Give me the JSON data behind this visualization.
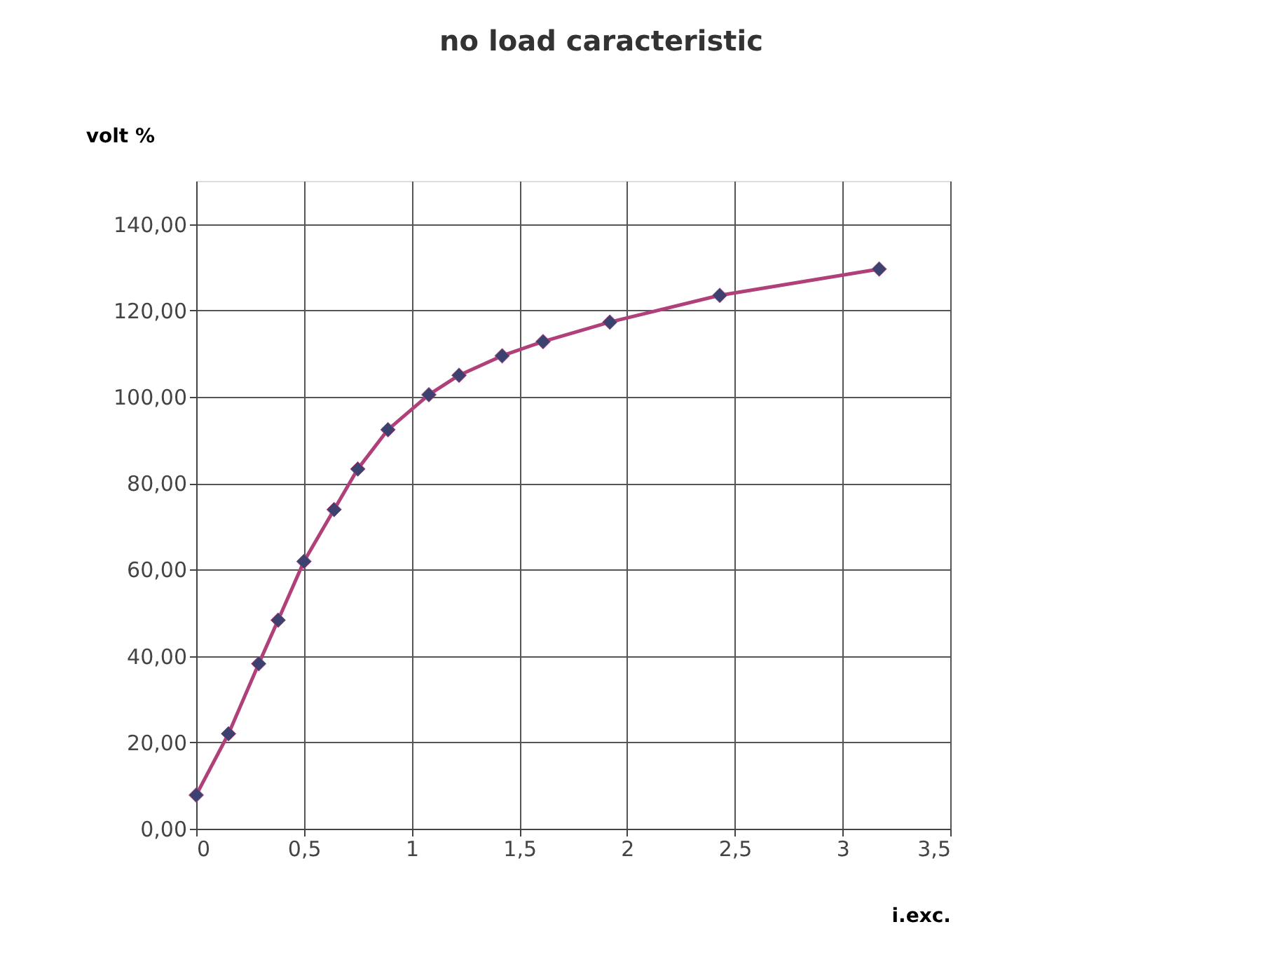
{
  "chart_data": {
    "type": "line",
    "title": "no load caracteristic",
    "xlabel": "i.exc.",
    "ylabel": "volt %",
    "x": [
      0,
      0.15,
      0.29,
      0.38,
      0.5,
      0.64,
      0.75,
      0.89,
      1.08,
      1.22,
      1.42,
      1.61,
      1.92,
      2.43,
      3.17
    ],
    "series": [
      {
        "color": "#b0407a",
        "values": [
          7.8,
          22.0,
          38.2,
          48.3,
          61.9,
          73.9,
          83.3,
          92.4,
          100.5,
          105.0,
          109.5,
          112.8,
          117.3,
          123.5,
          129.6
        ]
      }
    ],
    "xlim": [
      0,
      3.5
    ],
    "xticks": [
      0,
      {
        "value": 0.5,
        "label": "0,5"
      },
      1,
      {
        "value": 1.5,
        "label": "1,5"
      },
      2,
      {
        "value": 2.5,
        "label": "2,5"
      },
      3,
      {
        "value": 3.5,
        "label": "3,5"
      }
    ],
    "ylim": [
      0,
      150
    ],
    "yticks": [
      {
        "value": 0,
        "label": "0,00"
      },
      {
        "value": 20,
        "label": "20,00"
      },
      {
        "value": 40,
        "label": "40,00"
      },
      {
        "value": 60,
        "label": "60,00"
      },
      {
        "value": 80,
        "label": "80,00"
      },
      {
        "value": 100,
        "label": "100,00"
      },
      {
        "value": 120,
        "label": "120,00"
      },
      {
        "value": 140,
        "label": "140,00"
      }
    ],
    "grid": true,
    "marker": "diamond",
    "line_style": "solid"
  }
}
